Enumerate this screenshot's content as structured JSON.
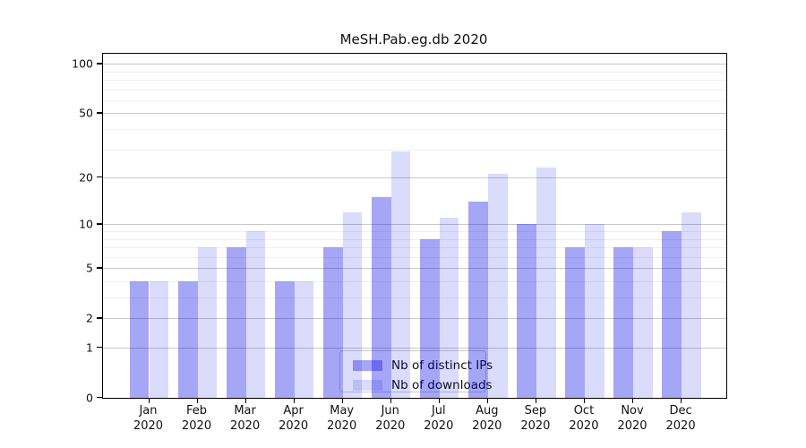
{
  "title": "MeSH.Pab.eg.db 2020",
  "chart_data": {
    "type": "bar",
    "title": "MeSH.Pab.eg.db 2020",
    "y_scale": "log1p",
    "ylim": [
      0,
      115
    ],
    "y_ticks": [
      0,
      1,
      2,
      5,
      10,
      20,
      50,
      100
    ],
    "y_minor_gridlines": [
      3,
      4,
      6,
      7,
      8,
      9,
      30,
      40,
      60,
      70,
      80,
      90
    ],
    "categories": [
      "Jan",
      "Feb",
      "Mar",
      "Apr",
      "May",
      "Jun",
      "Jul",
      "Aug",
      "Sep",
      "Oct",
      "Nov",
      "Dec"
    ],
    "x_sublabel": "2020",
    "xlabel": "",
    "ylabel": "",
    "grid": true,
    "legend_position": "bottom-center",
    "series": [
      {
        "name": "Nb of distinct IPs",
        "color": "#0000E659",
        "values": [
          4,
          4,
          7,
          4,
          7,
          15,
          8,
          14,
          10,
          7,
          7,
          9
        ]
      },
      {
        "name": "Nb of downloads",
        "color": "#0000E624",
        "values": [
          4,
          7,
          9,
          4,
          12,
          29,
          11,
          21,
          23,
          10,
          7,
          12
        ]
      }
    ]
  },
  "colors": {
    "major_grid": "#c9c9c9",
    "minor_grid": "#efefef",
    "axis": "#000000",
    "text": "#111111",
    "legend_border": "#cccccc"
  }
}
